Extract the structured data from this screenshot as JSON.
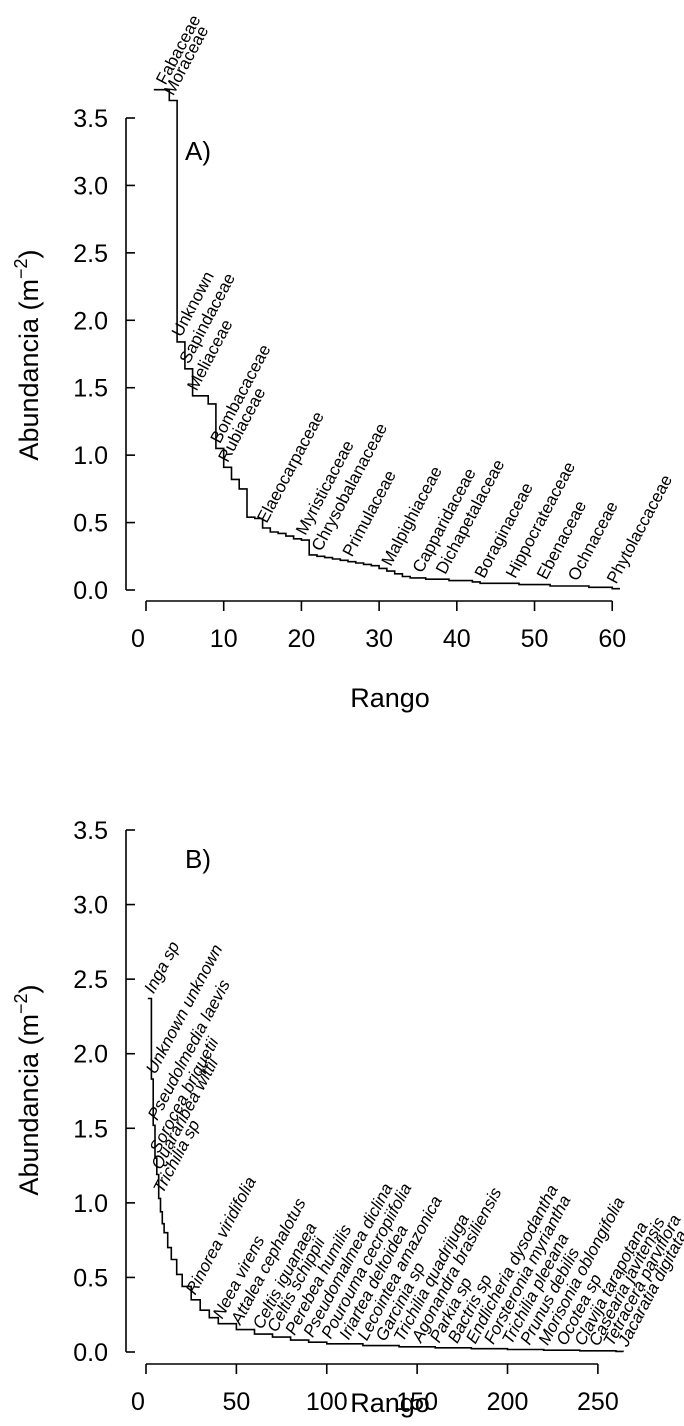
{
  "chart_data": [
    {
      "type": "line",
      "panel_label": "A)",
      "xlabel": "Rango",
      "ylabel": "Abundancia (m",
      "ylabel_sup": "−2",
      "ylabel_close": ")",
      "xlim": [
        0,
        61
      ],
      "ylim": [
        0,
        3.7
      ],
      "x_ticks": [
        0,
        10,
        20,
        30,
        40,
        50,
        60
      ],
      "x_tick_labels": [
        "0",
        "10",
        "20",
        "30",
        "40",
        "50",
        "60"
      ],
      "y_ticks": [
        0,
        0.5,
        1.0,
        1.5,
        2.0,
        2.5,
        3.0,
        3.5
      ],
      "y_tick_labels": [
        "0.0",
        "0.5",
        "1.0",
        "1.5",
        "2.0",
        "2.5",
        "3.0",
        "3.5"
      ],
      "series": [
        {
          "style": "step",
          "points": [
            [
              1,
              3.71
            ],
            [
              2,
              3.71
            ],
            [
              3,
              3.63
            ],
            [
              4,
              1.84
            ],
            [
              5,
              1.64
            ],
            [
              6,
              1.44
            ],
            [
              7,
              1.44
            ],
            [
              8,
              1.38
            ],
            [
              9,
              1.05
            ],
            [
              10,
              0.91
            ],
            [
              11,
              0.82
            ],
            [
              12,
              0.75
            ],
            [
              13,
              0.54
            ],
            [
              14,
              0.53
            ],
            [
              15,
              0.46
            ],
            [
              16,
              0.43
            ],
            [
              17,
              0.42
            ],
            [
              18,
              0.4
            ],
            [
              19,
              0.38
            ],
            [
              20,
              0.37
            ],
            [
              21,
              0.26
            ],
            [
              22,
              0.25
            ],
            [
              23,
              0.24
            ],
            [
              24,
              0.23
            ],
            [
              25,
              0.22
            ],
            [
              26,
              0.21
            ],
            [
              27,
              0.2
            ],
            [
              28,
              0.19
            ],
            [
              29,
              0.18
            ],
            [
              30,
              0.16
            ],
            [
              31,
              0.14
            ],
            [
              32,
              0.12
            ],
            [
              33,
              0.1
            ],
            [
              34,
              0.09
            ],
            [
              35,
              0.09
            ],
            [
              36,
              0.08
            ],
            [
              37,
              0.08
            ],
            [
              38,
              0.08
            ],
            [
              39,
              0.07
            ],
            [
              40,
              0.07
            ],
            [
              41,
              0.07
            ],
            [
              42,
              0.06
            ],
            [
              43,
              0.05
            ],
            [
              44,
              0.05
            ],
            [
              45,
              0.05
            ],
            [
              46,
              0.05
            ],
            [
              47,
              0.05
            ],
            [
              48,
              0.04
            ],
            [
              49,
              0.04
            ],
            [
              50,
              0.04
            ],
            [
              51,
              0.04
            ],
            [
              52,
              0.03
            ],
            [
              53,
              0.03
            ],
            [
              54,
              0.03
            ],
            [
              55,
              0.03
            ],
            [
              56,
              0.03
            ],
            [
              57,
              0.02
            ],
            [
              58,
              0.02
            ],
            [
              59,
              0.02
            ],
            [
              60,
              0.01
            ],
            [
              61,
              0.01
            ]
          ]
        }
      ],
      "annotations": [
        {
          "text": "Fabaceae",
          "x": 2,
          "y": 3.71
        },
        {
          "text": "Moraceae",
          "x": 3,
          "y": 3.63
        },
        {
          "text": "Unknown",
          "x": 4,
          "y": 1.84
        },
        {
          "text": "Sapindaceae",
          "x": 5,
          "y": 1.64
        },
        {
          "text": "Meliaceae",
          "x": 6,
          "y": 1.44
        },
        {
          "text": "Bombacaceae",
          "x": 9,
          "y": 1.05
        },
        {
          "text": "Rubiaceae",
          "x": 10,
          "y": 0.91
        },
        {
          "text": "Elaeocarpaceae",
          "x": 15,
          "y": 0.46
        },
        {
          "text": "Myristicaceae",
          "x": 20,
          "y": 0.37
        },
        {
          "text": "Chrysobalanaceae",
          "x": 22,
          "y": 0.25
        },
        {
          "text": "Primulaceae",
          "x": 26,
          "y": 0.21
        },
        {
          "text": "Malpighiaceae",
          "x": 31,
          "y": 0.14
        },
        {
          "text": "Capparidaceae",
          "x": 35,
          "y": 0.09
        },
        {
          "text": "Dichapetalaceae",
          "x": 38,
          "y": 0.08
        },
        {
          "text": "Boraginaceae",
          "x": 43,
          "y": 0.05
        },
        {
          "text": "Hippocrateaceae",
          "x": 47,
          "y": 0.05
        },
        {
          "text": "Ebenaceae",
          "x": 51,
          "y": 0.04
        },
        {
          "text": "Ochnaceae",
          "x": 55,
          "y": 0.03
        },
        {
          "text": "Phytolaccaceae",
          "x": 60,
          "y": 0.01
        }
      ]
    },
    {
      "type": "line",
      "panel_label": "B)",
      "xlabel": "Rango",
      "ylabel": "Abundancia (m",
      "ylabel_sup": "−2",
      "ylabel_close": ")",
      "xlim": [
        0,
        265
      ],
      "ylim": [
        0,
        3.5
      ],
      "x_ticks": [
        0,
        50,
        100,
        150,
        200,
        250
      ],
      "x_tick_labels": [
        "0",
        "50",
        "100",
        "150",
        "200",
        "250"
      ],
      "y_ticks": [
        0,
        0.5,
        1.0,
        1.5,
        2.0,
        2.5,
        3.0,
        3.5
      ],
      "y_tick_labels": [
        "0.0",
        "0.5",
        "1.0",
        "1.5",
        "2.0",
        "2.5",
        "3.0",
        "3.5"
      ],
      "series": [
        {
          "style": "step",
          "points": [
            [
              1,
              2.37
            ],
            [
              2,
              2.37
            ],
            [
              3,
              1.83
            ],
            [
              4,
              1.52
            ],
            [
              5,
              1.3
            ],
            [
              6,
              1.19
            ],
            [
              7,
              1.03
            ],
            [
              8,
              0.94
            ],
            [
              9,
              0.86
            ],
            [
              10,
              0.8
            ],
            [
              12,
              0.7
            ],
            [
              14,
              0.62
            ],
            [
              17,
              0.52
            ],
            [
              20,
              0.44
            ],
            [
              25,
              0.35
            ],
            [
              30,
              0.28
            ],
            [
              35,
              0.23
            ],
            [
              40,
              0.19
            ],
            [
              50,
              0.15
            ],
            [
              60,
              0.12
            ],
            [
              70,
              0.1
            ],
            [
              80,
              0.08
            ],
            [
              90,
              0.066
            ],
            [
              100,
              0.055
            ],
            [
              120,
              0.043
            ],
            [
              140,
              0.035
            ],
            [
              160,
              0.028
            ],
            [
              180,
              0.022
            ],
            [
              200,
              0.017
            ],
            [
              220,
              0.012
            ],
            [
              240,
              0.008
            ],
            [
              260,
              0.004
            ],
            [
              264,
              0.003
            ]
          ]
        }
      ],
      "annotations": [
        {
          "text": "Inga sp",
          "x": 2,
          "y": 2.37
        },
        {
          "text": "Unknown unknown",
          "x": 3,
          "y": 1.83
        },
        {
          "text": "Pseudolmedia laevis",
          "x": 4,
          "y": 1.52
        },
        {
          "text": "Sorocea briquetii",
          "x": 5,
          "y": 1.3
        },
        {
          "text": "Quararibea wittii",
          "x": 6,
          "y": 1.19
        },
        {
          "text": "Trichilia sp",
          "x": 7,
          "y": 1.03
        },
        {
          "text": "Rinorea viridifolia",
          "x": 25,
          "y": 0.35
        },
        {
          "text": "Neea virens",
          "x": 40,
          "y": 0.19
        },
        {
          "text": "Attalea cephalotus",
          "x": 50,
          "y": 0.15
        },
        {
          "text": "Celtis iguanaea",
          "x": 62,
          "y": 0.12
        },
        {
          "text": "Celtis schippii",
          "x": 70,
          "y": 0.1
        },
        {
          "text": "Perebea humilis",
          "x": 80,
          "y": 0.08
        },
        {
          "text": "Pseudomalmea diclina",
          "x": 90,
          "y": 0.066
        },
        {
          "text": "Pourouma cecropiifolia",
          "x": 100,
          "y": 0.055
        },
        {
          "text": "Iriartea deltoidea",
          "x": 110,
          "y": 0.049
        },
        {
          "text": "Lecointea amazonica",
          "x": 120,
          "y": 0.043
        },
        {
          "text": "Garcinia sp",
          "x": 130,
          "y": 0.039
        },
        {
          "text": "Trichilia quadrijuga",
          "x": 140,
          "y": 0.035
        },
        {
          "text": "Agonandra brasiliensis",
          "x": 150,
          "y": 0.031
        },
        {
          "text": "Parkia sp",
          "x": 160,
          "y": 0.028
        },
        {
          "text": "Bactris sp",
          "x": 170,
          "y": 0.025
        },
        {
          "text": "Endlicheria dysodantha",
          "x": 180,
          "y": 0.022
        },
        {
          "text": "Forsteronia myriantha",
          "x": 190,
          "y": 0.019
        },
        {
          "text": "Trichilia pleeana",
          "x": 200,
          "y": 0.017
        },
        {
          "text": "Prunus debilis",
          "x": 210,
          "y": 0.014
        },
        {
          "text": "Morisonia oblongifolia",
          "x": 220,
          "y": 0.012
        },
        {
          "text": "Ocotea sp",
          "x": 230,
          "y": 0.01
        },
        {
          "text": "Clavija tarapotana",
          "x": 240,
          "y": 0.008
        },
        {
          "text": "Casearia javitensis",
          "x": 248,
          "y": 0.006
        },
        {
          "text": "Tetracera parviflora",
          "x": 256,
          "y": 0.005
        },
        {
          "text": "Jacaratia digitata",
          "x": 264,
          "y": 0.003
        }
      ]
    }
  ]
}
